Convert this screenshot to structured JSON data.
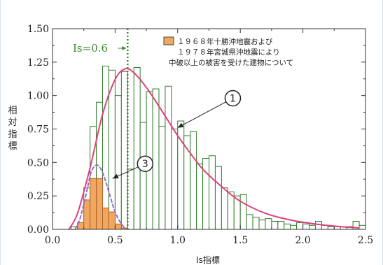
{
  "chart_data": {
    "type": "bar",
    "title": "",
    "xlabel": "Is指標",
    "ylabel": "相対指標",
    "xlim": [
      0.0,
      2.5
    ],
    "ylim": [
      0.0,
      1.5
    ],
    "x_ticks": [
      "0.0",
      "0.5",
      "1.0",
      "1.5",
      "2.0",
      "2.5"
    ],
    "y_ticks": [
      "0.00",
      "0.25",
      "0.50",
      "0.75",
      "1.00",
      "1.25",
      "1.50"
    ],
    "legend": {
      "swatch_color": "#f0a860",
      "lines": [
        "１９６８年十勝沖地震および",
        "１９７８年宮城県沖地震により",
        "中破以上の被害を受けた建物について"
      ]
    },
    "vertical_marker": {
      "x": 0.6,
      "label": "Is=0.6",
      "color": "#3a8a2a"
    },
    "bin_width": 0.05,
    "bin_starts": [
      0.15,
      0.2,
      0.25,
      0.3,
      0.35,
      0.4,
      0.45,
      0.5,
      0.55,
      0.6,
      0.65,
      0.7,
      0.75,
      0.8,
      0.85,
      0.9,
      0.95,
      1.0,
      1.05,
      1.1,
      1.15,
      1.2,
      1.25,
      1.3,
      1.35,
      1.4,
      1.45,
      1.5,
      1.55,
      1.6,
      1.65,
      1.7,
      1.75,
      1.8,
      1.85,
      1.9,
      1.95,
      2.0,
      2.05,
      2.1,
      2.15,
      2.2,
      2.25,
      2.3,
      2.35,
      2.4,
      2.45
    ],
    "series": [
      {
        "name": "",
        "style": "outline",
        "values": [
          0.02,
          0.05,
          0.31,
          0.77,
          0.95,
          1.22,
          1.19,
          1.0,
          1.18,
          0.45,
          1.21,
          0.8,
          1.03,
          1.05,
          0.77,
          1.07,
          0.75,
          0.81,
          0.7,
          0.73,
          0.49,
          0.53,
          0.55,
          0.47,
          0.31,
          0.28,
          0.25,
          0.26,
          0.11,
          0.09,
          0.07,
          0.08,
          0.06,
          0.06,
          0.04,
          0.03,
          0.05,
          0.04,
          0.03,
          0.06,
          0.03,
          0.02,
          0.02,
          0.02,
          0.02,
          0.06,
          0.03
        ]
      },
      {
        "name": "",
        "style": "filled",
        "color": "#f0a860",
        "values": [
          0.0,
          0.05,
          0.22,
          0.38,
          0.38,
          0.16,
          0.13,
          0.04,
          0.01,
          0,
          0,
          0,
          0,
          0,
          0,
          0,
          0,
          0,
          0,
          0,
          0,
          0,
          0,
          0,
          0,
          0,
          0,
          0,
          0,
          0,
          0,
          0,
          0,
          0,
          0,
          0,
          0,
          0,
          0,
          0,
          0,
          0,
          0,
          0,
          0,
          0,
          0
        ]
      }
    ],
    "curves": [
      {
        "label": "1",
        "color": "#e0407a",
        "x": [
          0.13,
          0.2,
          0.3,
          0.4,
          0.5,
          0.58,
          0.65,
          0.75,
          0.85,
          1.0,
          1.1,
          1.2,
          1.35,
          1.5,
          1.7,
          1.9,
          2.1,
          2.3,
          2.45
        ],
        "y": [
          0.0,
          0.12,
          0.46,
          0.86,
          1.12,
          1.2,
          1.17,
          1.06,
          0.92,
          0.7,
          0.57,
          0.45,
          0.32,
          0.21,
          0.12,
          0.07,
          0.04,
          0.02,
          0.01
        ]
      },
      {
        "label": "3",
        "color": "#9a6ad0",
        "x": [
          0.18,
          0.22,
          0.27,
          0.31,
          0.35,
          0.38,
          0.41,
          0.45,
          0.5,
          0.55,
          0.59
        ],
        "y": [
          0.0,
          0.08,
          0.27,
          0.43,
          0.48,
          0.46,
          0.4,
          0.28,
          0.13,
          0.04,
          0.0
        ]
      }
    ],
    "callouts": [
      {
        "label": "1",
        "points_to": [
          1.0,
          0.76
        ],
        "bubble_at": [
          1.44,
          0.98
        ]
      },
      {
        "label": "3",
        "points_to": [
          0.48,
          0.38
        ],
        "bubble_at": [
          0.74,
          0.49
        ]
      }
    ],
    "grid": false,
    "legend_position": "top-right"
  }
}
